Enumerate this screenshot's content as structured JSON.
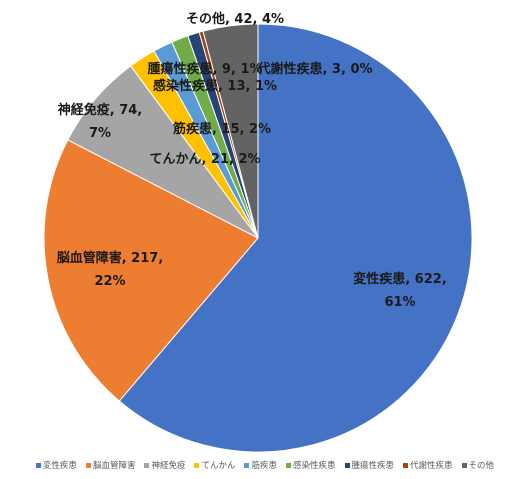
{
  "chart_data": {
    "type": "pie",
    "slices": [
      {
        "name": "変性疾患",
        "value": 622,
        "percent": "61%",
        "color": "#4472C4"
      },
      {
        "name": "脳血管障害",
        "value": 217,
        "percent": "22%",
        "color": "#ED7D31"
      },
      {
        "name": "神経免疫",
        "value": 74,
        "percent": "7%",
        "color": "#A5A5A5"
      },
      {
        "name": "てんかん",
        "value": 21,
        "percent": "2%",
        "color": "#FFC000"
      },
      {
        "name": "筋疾患",
        "value": 15,
        "percent": "2%",
        "color": "#5B9BD5"
      },
      {
        "name": "感染性疾患",
        "value": 13,
        "percent": "1%",
        "color": "#70AD47"
      },
      {
        "name": "腫瘍性疾患",
        "value": 9,
        "percent": "1%",
        "color": "#264478"
      },
      {
        "name": "代謝性疾患",
        "value": 3,
        "percent": "0%",
        "color": "#9E480E"
      },
      {
        "name": "その他",
        "value": 42,
        "percent": "4%",
        "color": "#636363"
      }
    ],
    "legend_position": "bottom"
  }
}
